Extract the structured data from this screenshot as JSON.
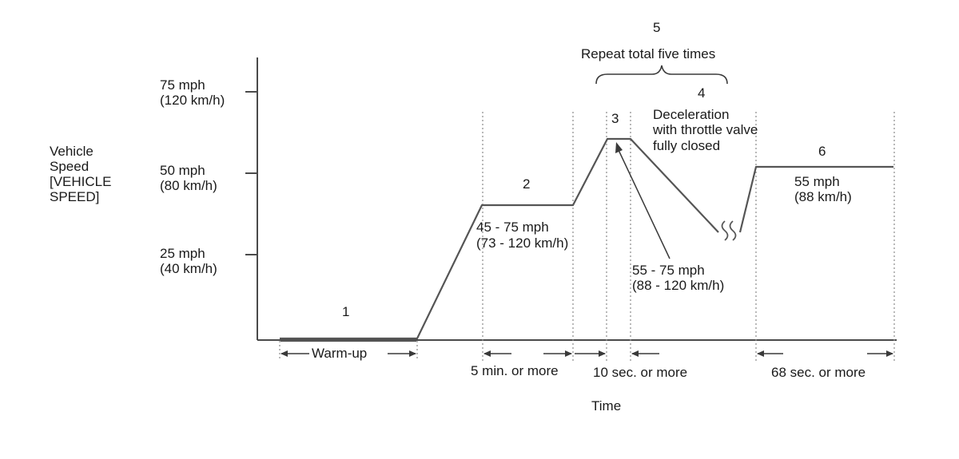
{
  "axes": {
    "y_label": [
      "Vehicle",
      "Speed",
      "[VEHICLE",
      "SPEED]"
    ],
    "x_label": "Time",
    "y_ticks": [
      {
        "line1": "75 mph",
        "line2": "(120 km/h)"
      },
      {
        "line1": "50 mph",
        "line2": "(80 km/h)"
      },
      {
        "line1": "25 mph",
        "line2": "(40 km/h)"
      }
    ]
  },
  "steps": [
    "1",
    "2",
    "3",
    "4",
    "5",
    "6"
  ],
  "annotations": {
    "repeat": "Repeat total five times",
    "decel": [
      "Deceleration",
      "with throttle valve",
      "fully closed"
    ],
    "step2_speed": [
      "45 - 75 mph",
      "(73 - 120 km/h)"
    ],
    "step3_speed": [
      "55 - 75 mph",
      "(88 - 120 km/h)"
    ],
    "step6_speed": [
      "55 mph",
      "(88 km/h)"
    ]
  },
  "durations": {
    "warmup": "Warm-up",
    "step2": "5 min. or more",
    "step3": "10 sec. or more",
    "step6": "68 sec. or more"
  },
  "colors": {
    "line": "#555555",
    "text": "#1a1a1a",
    "guide": "#8a8a8a"
  }
}
